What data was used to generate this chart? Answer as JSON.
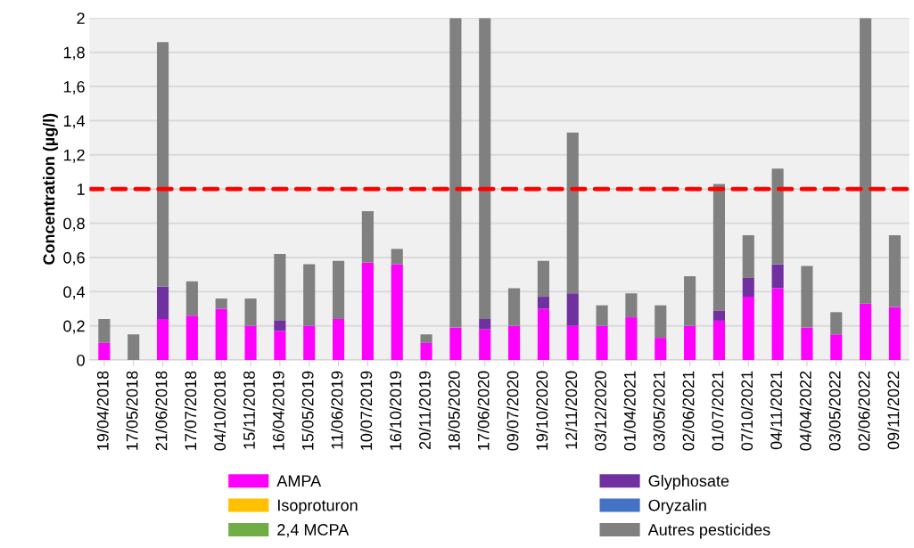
{
  "chart_data": {
    "type": "bar",
    "stacked": true,
    "ylabel": "Concentration (µg/l)",
    "categories": [
      "19/04/2018",
      "17/05/2018",
      "21/06/2018",
      "17/07/2018",
      "04/10/2018",
      "15/11/2018",
      "16/04/2019",
      "15/05/2019",
      "11/06/2019",
      "10/07/2019",
      "16/10/2019",
      "20/11/2019",
      "18/05/2020",
      "17/06/2020",
      "09/07/2020",
      "19/10/2020",
      "12/11/2020",
      "03/12/2020",
      "01/04/2021",
      "03/05/2021",
      "02/06/2021",
      "01/07/2021",
      "07/10/2021",
      "04/11/2021",
      "04/04/2022",
      "03/05/2022",
      "02/06/2022",
      "09/11/2022"
    ],
    "series": [
      {
        "name": "AMPA",
        "color": "#ff00ff",
        "values": [
          0.1,
          0,
          0.24,
          0.26,
          0.3,
          0.2,
          0.17,
          0.2,
          0.24,
          0.57,
          0.56,
          0.1,
          0.19,
          0.18,
          0.2,
          0.3,
          0.2,
          0.2,
          0.25,
          0.13,
          0.2,
          0.23,
          0.37,
          0.42,
          0.19,
          0.15,
          0.33,
          0.31
        ]
      },
      {
        "name": "Glyphosate",
        "color": "#7030a0",
        "values": [
          0,
          0,
          0.19,
          0,
          0,
          0,
          0.06,
          0,
          0,
          0,
          0,
          0,
          0,
          0.06,
          0,
          0.07,
          0.19,
          0,
          0,
          0,
          0,
          0.06,
          0.11,
          0.14,
          0,
          0,
          0,
          0
        ]
      },
      {
        "name": "Isoproturon",
        "color": "#ffc000",
        "values": [
          0,
          0,
          0,
          0,
          0,
          0,
          0,
          0,
          0,
          0,
          0,
          0,
          0,
          0,
          0,
          0,
          0,
          0,
          0,
          0,
          0,
          0,
          0,
          0,
          0,
          0,
          0,
          0
        ]
      },
      {
        "name": "Oryzalin",
        "color": "#4472c4",
        "values": [
          0,
          0,
          0,
          0,
          0,
          0,
          0,
          0,
          0,
          0,
          0,
          0,
          0,
          0,
          0,
          0,
          0,
          0,
          0,
          0,
          0,
          0,
          0,
          0,
          0,
          0,
          0,
          0
        ]
      },
      {
        "name": "2,4 MCPA",
        "color": "#70ad47",
        "values": [
          0,
          0,
          0,
          0,
          0,
          0,
          0,
          0,
          0,
          0,
          0,
          0,
          0,
          0,
          0,
          0,
          0,
          0,
          0,
          0,
          0,
          0,
          0,
          0,
          0,
          0,
          0,
          0
        ]
      },
      {
        "name": "Autres pesticides",
        "color": "#808080",
        "values": [
          0.14,
          0.15,
          1.43,
          0.2,
          0.06,
          0.16,
          0.39,
          0.36,
          0.34,
          0.3,
          0.09,
          0.05,
          1.81,
          1.76,
          0.22,
          0.21,
          0.94,
          0.12,
          0.14,
          0.19,
          0.29,
          0.74,
          0.25,
          0.56,
          0.36,
          0.13,
          1.67,
          0.42
        ]
      }
    ],
    "ylim": [
      0,
      2
    ],
    "yticks": [
      0,
      {
        "value": 0.2,
        "label": "0,2"
      },
      {
        "value": 0.4,
        "label": "0,4"
      },
      {
        "value": 0.6,
        "label": "0,6"
      },
      {
        "value": 0.8,
        "label": "0,8"
      },
      1,
      {
        "value": 1.2,
        "label": "1,2"
      },
      {
        "value": 1.4,
        "label": "1,4"
      },
      {
        "value": 1.6,
        "label": "1,6"
      },
      {
        "value": 1.8,
        "label": "1,8"
      },
      2
    ],
    "ref_lines": [
      {
        "axis": "y",
        "value": 1,
        "color": "#ff0000",
        "line_style": "dashed"
      }
    ],
    "grid": "y",
    "legend": "bottom"
  }
}
